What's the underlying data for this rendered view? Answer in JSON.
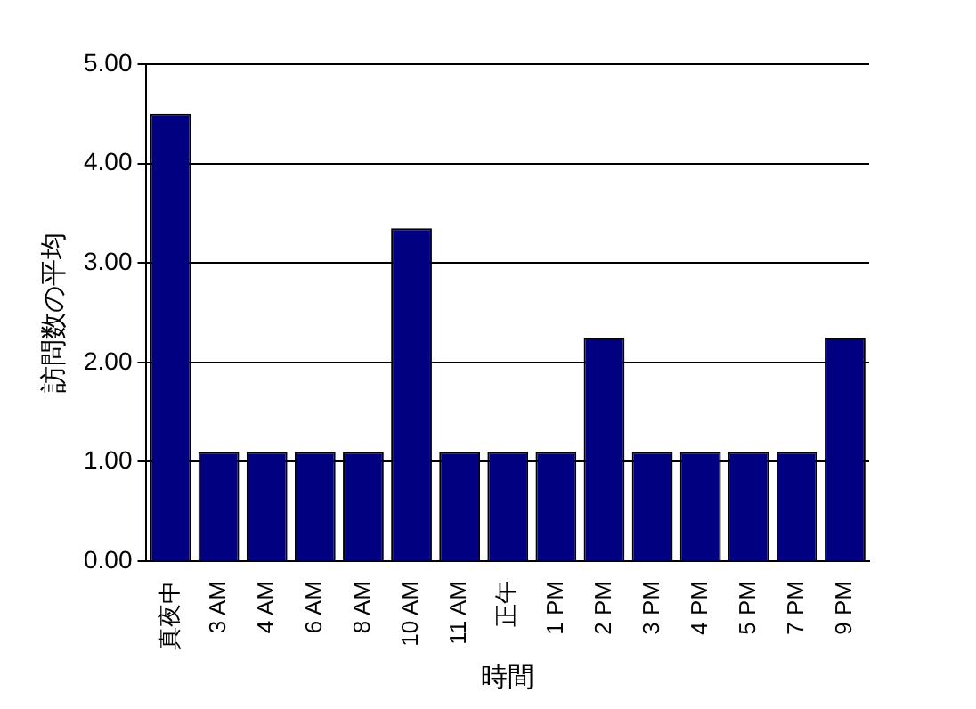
{
  "chart_data": {
    "type": "bar",
    "xlabel": "時間",
    "ylabel": "訪問数の平均",
    "categories": [
      "真夜中",
      "3 AM",
      "4 AM",
      "6 AM",
      "8 AM",
      "10 AM",
      "11 AM",
      "正午",
      "1 PM",
      "2 PM",
      "3 PM",
      "4 PM",
      "5 PM",
      "7 PM",
      "9 PM"
    ],
    "values": [
      4.5,
      1.1,
      1.1,
      1.1,
      1.1,
      3.35,
      1.1,
      1.1,
      1.1,
      2.25,
      1.1,
      1.1,
      1.1,
      1.1,
      2.25
    ],
    "color": "#000080",
    "ylim": [
      0,
      5
    ],
    "yticks": [
      {
        "value": 0,
        "label": "0.00"
      },
      {
        "value": 1,
        "label": "1.00"
      },
      {
        "value": 2,
        "label": "2.00"
      },
      {
        "value": 3,
        "label": "3.00"
      },
      {
        "value": 4,
        "label": "4.00"
      },
      {
        "value": 5,
        "label": "5.00"
      }
    ],
    "grid": "y",
    "legend": false
  }
}
